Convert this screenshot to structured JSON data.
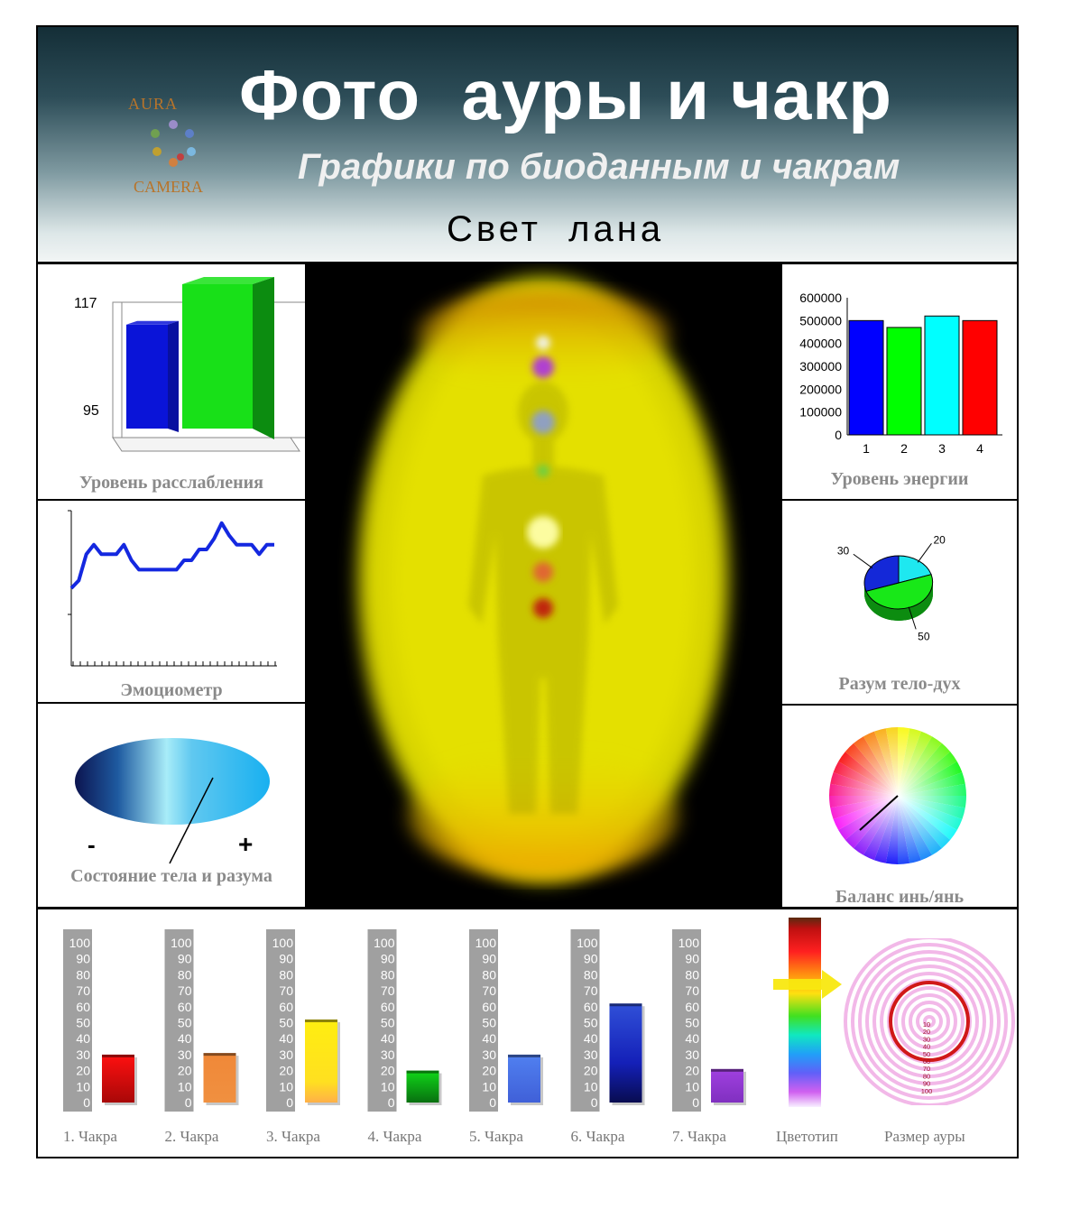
{
  "header": {
    "title": "Фото  ауры и чакр",
    "subtitle": "Графики по биоданным и чакрам",
    "name": "Свет  лана",
    "logo_top": "AURA",
    "logo_bottom": "CAMERA"
  },
  "captions": {
    "relaxation": "Уровень расслабления",
    "emotion": "Эмоциометр",
    "body_mind": "Состояние тела и разума",
    "energy": "Уровень энергии",
    "mind_body_spirit": "Разум тело-дух",
    "yin_yang": "Баланс инь/янь",
    "colortype": "Цветотип",
    "aura_size": "Размер ауры"
  },
  "colors": {
    "aura_yellow": "#e8e400",
    "aura_orange": "#e89a00",
    "background_black": "#000000"
  },
  "chart_data": [
    {
      "id": "relaxation",
      "type": "bar",
      "ticks": [
        "117",
        "95"
      ],
      "series": [
        {
          "color": "#0a14d8",
          "relative_height": 0.72
        },
        {
          "color": "#18e018",
          "relative_height": 1.0
        }
      ]
    },
    {
      "id": "energy",
      "type": "bar",
      "categories": [
        "1",
        "2",
        "3",
        "4"
      ],
      "yticks": [
        "600000",
        "500000",
        "400000",
        "300000",
        "200000",
        "100000",
        "0"
      ],
      "ylim": [
        0,
        600000
      ],
      "values": [
        500000,
        470000,
        520000,
        500000
      ],
      "colors": [
        "#0000ff",
        "#00ff00",
        "#00ffff",
        "#ff0000"
      ]
    },
    {
      "id": "emotion",
      "type": "line",
      "values": [
        50,
        55,
        72,
        78,
        72,
        72,
        72,
        78,
        68,
        62,
        62,
        62,
        62,
        62,
        62,
        68,
        68,
        75,
        75,
        82,
        92,
        84,
        78,
        78,
        78,
        72,
        78,
        78
      ],
      "color": "#1428e0"
    },
    {
      "id": "mind_body_spirit",
      "type": "pie",
      "labels": [
        "20",
        "50",
        "30"
      ],
      "values": [
        20,
        50,
        30
      ],
      "colors": [
        "#1ee8f0",
        "#18e818",
        "#1428d8"
      ]
    },
    {
      "id": "body_mind",
      "type": "gauge",
      "labels": [
        "-",
        "+"
      ]
    },
    {
      "id": "yin_yang",
      "type": "color-wheel"
    },
    {
      "id": "chakras",
      "type": "bar",
      "yticks": [
        "100",
        "90",
        "80",
        "70",
        "60",
        "50",
        "40",
        "30",
        "20",
        "10",
        "0"
      ],
      "ylim": [
        0,
        100
      ],
      "categories": [
        "1. Чакра",
        "2. Чакра",
        "3. Чакра",
        "4. Чакра",
        "5. Чакра",
        "6. Чакра",
        "7. Чакра"
      ],
      "values": [
        30,
        31,
        52,
        20,
        30,
        62,
        21
      ],
      "colors": [
        "#e81010",
        "#f08030",
        "#ffe818",
        "#10c818",
        "#4870e8",
        "#1428b0",
        "#9830d0"
      ]
    },
    {
      "id": "aura_size",
      "type": "target",
      "labels": [
        "10",
        "20",
        "30",
        "40",
        "50",
        "60",
        "70",
        "80",
        "90",
        "100"
      ],
      "value": 40
    }
  ]
}
